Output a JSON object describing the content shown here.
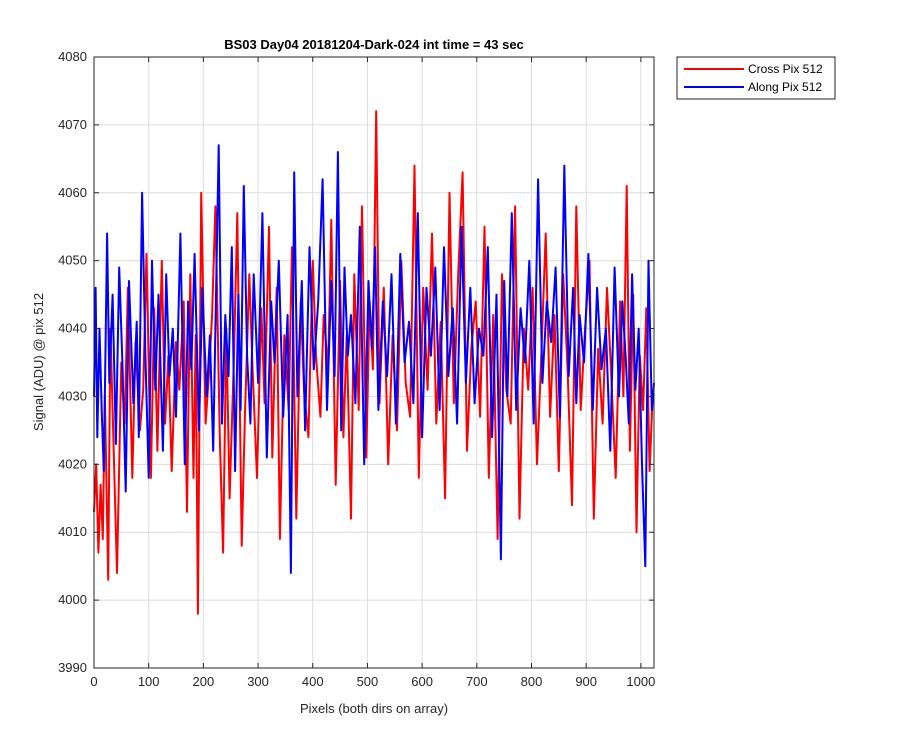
{
  "chart_data": {
    "type": "line",
    "title": "BS03 Day04 20181204-Dark-024 int time = 43 sec",
    "xlabel": "Pixels (both dirs on array)",
    "ylabel": "Signal (ADU) @ pix 512",
    "xlim": [
      0,
      1024
    ],
    "ylim": [
      3990,
      4080
    ],
    "xticks": [
      0,
      100,
      200,
      300,
      400,
      500,
      600,
      700,
      800,
      900,
      1000
    ],
    "yticks": [
      3990,
      4000,
      4010,
      4020,
      4030,
      4040,
      4050,
      4060,
      4070,
      4080
    ],
    "grid": true,
    "legend_position": "outside-top-right",
    "series": [
      {
        "name": "Cross Pix 512",
        "color": "#ff0000",
        "x": [
          0,
          4,
          8,
          12,
          16,
          20,
          26,
          30,
          36,
          42,
          50,
          56,
          62,
          70,
          76,
          84,
          90,
          96,
          104,
          110,
          116,
          124,
          130,
          136,
          142,
          150,
          156,
          164,
          170,
          176,
          182,
          186,
          190,
          196,
          204,
          210,
          216,
          222,
          230,
          236,
          242,
          248,
          256,
          262,
          270,
          276,
          284,
          290,
          298,
          306,
          312,
          320,
          326,
          334,
          340,
          348,
          356,
          362,
          370,
          378,
          384,
          392,
          400,
          406,
          414,
          420,
          428,
          434,
          442,
          450,
          456,
          462,
          470,
          476,
          484,
          490,
          498,
          504,
          510,
          516,
          522,
          530,
          538,
          546,
          554,
          562,
          570,
          578,
          586,
          594,
          602,
          610,
          618,
          626,
          634,
          642,
          650,
          658,
          666,
          674,
          682,
          690,
          698,
          706,
          714,
          722,
          730,
          738,
          746,
          754,
          762,
          770,
          778,
          786,
          794,
          802,
          810,
          818,
          826,
          834,
          842,
          850,
          858,
          866,
          874,
          882,
          890,
          898,
          906,
          914,
          922,
          930,
          938,
          946,
          954,
          962,
          968,
          974,
          980,
          986,
          992,
          998,
          1004,
          1010,
          1016,
          1022
        ],
        "y": [
          4013,
          4020,
          4007,
          4017,
          4009,
          4030,
          4003,
          4040,
          4022,
          4004,
          4035,
          4026,
          4046,
          4018,
          4038,
          4025,
          4031,
          4051,
          4018,
          4043,
          4022,
          4050,
          4026,
          4036,
          4019,
          4038,
          4031,
          4044,
          4013,
          4048,
          4018,
          4039,
          3998,
          4060,
          4026,
          4033,
          4042,
          4058,
          4024,
          4007,
          4040,
          4015,
          4036,
          4057,
          4008,
          4027,
          4048,
          4034,
          4018,
          4043,
          4029,
          4055,
          4021,
          4046,
          4009,
          4039,
          4028,
          4052,
          4012,
          4044,
          4031,
          4024,
          4050,
          4036,
          4027,
          4042,
          4034,
          4056,
          4017,
          4047,
          4024,
          4039,
          4012,
          4048,
          4028,
          4058,
          4021,
          4044,
          4034,
          4072,
          4029,
          4046,
          4020,
          4039,
          4025,
          4050,
          4032,
          4027,
          4064,
          4018,
          4046,
          4031,
          4054,
          4026,
          4041,
          4015,
          4060,
          4029,
          4048,
          4063,
          4022,
          4037,
          4044,
          4027,
          4055,
          4018,
          4042,
          4009,
          4048,
          4031,
          4026,
          4058,
          4012,
          4040,
          4031,
          4046,
          4020,
          4036,
          4054,
          4027,
          4042,
          4019,
          4048,
          4034,
          4014,
          4058,
          4028,
          4040,
          4050,
          4012,
          4037,
          4026,
          4046,
          4033,
          4018,
          4044,
          4030,
          4061,
          4022,
          4045,
          4010,
          4036,
          4028,
          4043,
          4019,
          4031
        ]
      },
      {
        "name": "Along Pix 512",
        "color": "#0000ff",
        "x": [
          0,
          3,
          6,
          10,
          14,
          18,
          24,
          28,
          34,
          40,
          46,
          52,
          58,
          64,
          72,
          78,
          82,
          88,
          94,
          100,
          106,
          112,
          118,
          126,
          132,
          138,
          144,
          150,
          158,
          166,
          172,
          178,
          184,
          192,
          198,
          206,
          212,
          218,
          224,
          228,
          234,
          240,
          246,
          252,
          258,
          264,
          268,
          274,
          280,
          286,
          292,
          300,
          308,
          316,
          324,
          330,
          338,
          346,
          354,
          360,
          366,
          372,
          380,
          386,
          394,
          402,
          410,
          418,
          426,
          434,
          440,
          446,
          452,
          458,
          464,
          470,
          478,
          486,
          494,
          502,
          508,
          514,
          520,
          528,
          536,
          544,
          552,
          560,
          568,
          576,
          584,
          592,
          600,
          608,
          616,
          624,
          632,
          640,
          648,
          656,
          664,
          672,
          680,
          688,
          696,
          704,
          712,
          720,
          728,
          736,
          744,
          750,
          756,
          764,
          772,
          780,
          788,
          796,
          804,
          812,
          820,
          828,
          836,
          844,
          852,
          860,
          868,
          876,
          882,
          888,
          896,
          904,
          912,
          920,
          928,
          936,
          944,
          952,
          960,
          966,
          972,
          978,
          984,
          990,
          996,
          1002,
          1008,
          1014,
          1020,
          1024
        ],
        "y": [
          4030,
          4046,
          4024,
          4040,
          4028,
          4019,
          4054,
          4032,
          4045,
          4023,
          4049,
          4035,
          4016,
          4047,
          4029,
          4041,
          4024,
          4060,
          4036,
          4018,
          4050,
          4031,
          4045,
          4022,
          4048,
          4033,
          4040,
          4027,
          4054,
          4020,
          4044,
          4034,
          4051,
          4025,
          4046,
          4030,
          4039,
          4022,
          4049,
          4067,
          4026,
          4042,
          4033,
          4052,
          4019,
          4045,
          4028,
          4061,
          4036,
          4026,
          4048,
          4032,
          4057,
          4021,
          4044,
          4035,
          4050,
          4027,
          4042,
          4004,
          4063,
          4030,
          4047,
          4025,
          4052,
          4034,
          4044,
          4062,
          4028,
          4047,
          4033,
          4066,
          4025,
          4049,
          4036,
          4042,
          4029,
          4055,
          4020,
          4047,
          4037,
          4052,
          4028,
          4044,
          4033,
          4048,
          4026,
          4051,
          4035,
          4041,
          4029,
          4057,
          4024,
          4046,
          4036,
          4049,
          4028,
          4052,
          4033,
          4043,
          4026,
          4055,
          4032,
          4046,
          4029,
          4040,
          4036,
          4052,
          4024,
          4045,
          4006,
          4047,
          4030,
          4057,
          4028,
          4043,
          4035,
          4050,
          4026,
          4062,
          4032,
          4044,
          4038,
          4049,
          4027,
          4064,
          4033,
          4046,
          4029,
          4042,
          4035,
          4051,
          4028,
          4046,
          4034,
          4040,
          4022,
          4049,
          4030,
          4044,
          4036,
          4026,
          4048,
          4031,
          4040,
          4020,
          4005,
          4050,
          4028,
          4032
        ]
      }
    ]
  }
}
